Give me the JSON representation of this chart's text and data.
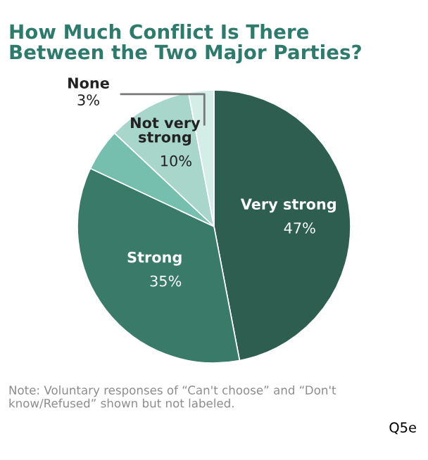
{
  "chart_data": {
    "type": "pie",
    "title": "How Much Conflict Is There\nBetween the Two Major Parties?",
    "categories": [
      "Very strong",
      "Strong",
      null,
      "Not very strong",
      "None"
    ],
    "values": [
      47,
      35,
      5,
      10,
      3
    ],
    "value_labels": [
      "47%",
      "35%",
      null,
      "10%",
      "3%"
    ],
    "colors": [
      "#2d5e50",
      "#3a7a68",
      "#76bfae",
      "#a9d6ca",
      "#d5ede7"
    ],
    "annotations": [
      "Note: Voluntary responses of “Can't choose” and “Don't know/Refused” shown but not labeled.",
      "Q5e"
    ]
  }
}
